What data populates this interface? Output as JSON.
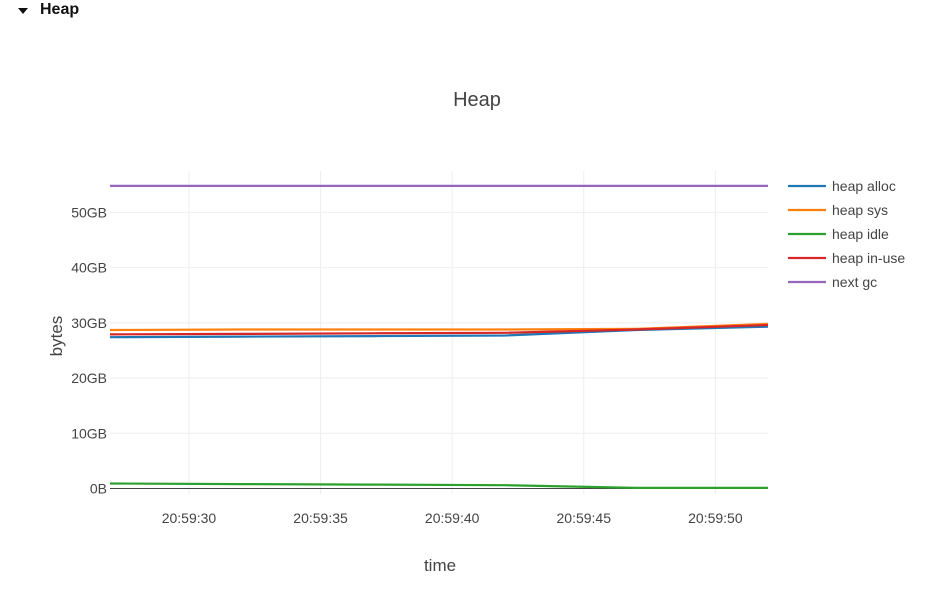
{
  "section": {
    "title": "Heap",
    "caret_icon": "caret-down-icon"
  },
  "chart_data": {
    "type": "line",
    "title": "Heap",
    "xlabel": "time",
    "ylabel": "bytes",
    "xlim": [
      "20:59:27",
      "20:59:52"
    ],
    "ylim": [
      -1,
      57.5
    ],
    "y_unit": "GB",
    "xticks": [
      "20:59:30",
      "20:59:35",
      "20:59:40",
      "20:59:45",
      "20:59:50"
    ],
    "yticks": [
      0,
      10,
      20,
      30,
      40,
      50
    ],
    "ytick_labels": [
      "0B",
      "10GB",
      "20GB",
      "30GB",
      "40GB",
      "50GB"
    ],
    "grid": true,
    "legend_position": "right",
    "x": [
      "20:59:27",
      "20:59:32",
      "20:59:37",
      "20:59:42",
      "20:59:47",
      "20:59:52"
    ],
    "series": [
      {
        "name": "heap alloc",
        "color": "#1f77b4",
        "values": [
          27.4,
          27.5,
          27.6,
          27.7,
          28.7,
          29.3
        ]
      },
      {
        "name": "heap sys",
        "color": "#ff7f0e",
        "values": [
          28.7,
          28.8,
          28.8,
          28.8,
          28.9,
          29.8
        ]
      },
      {
        "name": "heap idle",
        "color": "#2ca02c",
        "values": [
          0.9,
          0.8,
          0.7,
          0.6,
          0.1,
          0.1
        ]
      },
      {
        "name": "heap in-use",
        "color": "#d62728",
        "values": [
          27.9,
          28.0,
          28.1,
          28.2,
          28.8,
          29.6
        ]
      },
      {
        "name": "next gc",
        "color": "#9467bd",
        "values": [
          54.8,
          54.8,
          54.8,
          54.8,
          54.8,
          54.8
        ]
      }
    ]
  }
}
